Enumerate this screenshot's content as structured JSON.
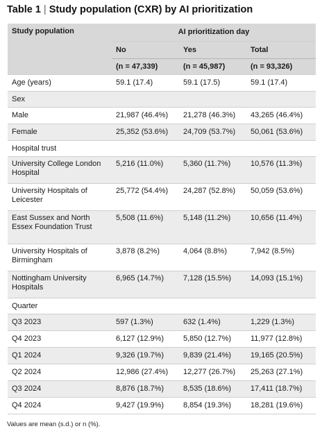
{
  "title": {
    "prefix": "Table 1",
    "separator": " | ",
    "text": "Study population (CXR) by AI prioritization"
  },
  "header": {
    "row_label": "Study population",
    "group_label": "AI prioritization day",
    "columns": [
      "No",
      "Yes",
      "Total"
    ],
    "counts": [
      "(n = 47,339)",
      "(n = 45,987)",
      "(n = 93,326)"
    ]
  },
  "rows": {
    "age": {
      "label": "Age (years)",
      "values": [
        "59.1 (17.4)",
        "59.1 (17.5)",
        "59.1 (17.4)"
      ]
    },
    "sex": {
      "label": "Sex",
      "items": [
        {
          "label": "Male",
          "values": [
            "21,987 (46.4%)",
            "21,278 (46.3%)",
            "43,265 (46.4%)"
          ]
        },
        {
          "label": "Female",
          "values": [
            "25,352 (53.6%)",
            "24,709 (53.7%)",
            "50,061 (53.6%)"
          ]
        }
      ]
    },
    "trust": {
      "label": "Hospital trust",
      "items": [
        {
          "label": "University College London Hospital",
          "values": [
            "5,216 (11.0%)",
            "5,360 (11.7%)",
            "10,576 (11.3%)"
          ]
        },
        {
          "label": "University Hospitals of Leicester",
          "values": [
            "25,772 (54.4%)",
            "24,287 (52.8%)",
            "50,059 (53.6%)"
          ]
        },
        {
          "label": "East Sussex and North Essex Foundation Trust",
          "values": [
            "5,508 (11.6%)",
            "5,148 (11.2%)",
            "10,656 (11.4%)"
          ]
        },
        {
          "label": "University Hospitals of Birmingham",
          "values": [
            "3,878 (8.2%)",
            "4,064 (8.8%)",
            "7,942 (8.5%)"
          ]
        },
        {
          "label": "Nottingham University Hospitals",
          "values": [
            "6,965 (14.7%)",
            "7,128 (15.5%)",
            "14,093 (15.1%)"
          ]
        }
      ]
    },
    "quarter": {
      "label": "Quarter",
      "items": [
        {
          "label": "Q3 2023",
          "values": [
            "597 (1.3%)",
            "632 (1.4%)",
            "1,229 (1.3%)"
          ]
        },
        {
          "label": "Q4 2023",
          "values": [
            "6,127 (12.9%)",
            "5,850 (12.7%)",
            "11,977 (12.8%)"
          ]
        },
        {
          "label": "Q1 2024",
          "values": [
            "9,326 (19.7%)",
            "9,839 (21.4%)",
            "19,165 (20.5%)"
          ]
        },
        {
          "label": "Q2 2024",
          "values": [
            "12,986 (27.4%)",
            "12,277 (26.7%)",
            "25,263 (27.1%)"
          ]
        },
        {
          "label": "Q3 2024",
          "values": [
            "8,876 (18.7%)",
            "8,535 (18.6%)",
            "17,411 (18.7%)"
          ]
        },
        {
          "label": "Q4 2024",
          "values": [
            "9,427 (19.9%)",
            "8,854 (19.3%)",
            "18,281 (19.6%)"
          ]
        }
      ]
    }
  },
  "footnote": "Values are mean (s.d.) or n (%)."
}
